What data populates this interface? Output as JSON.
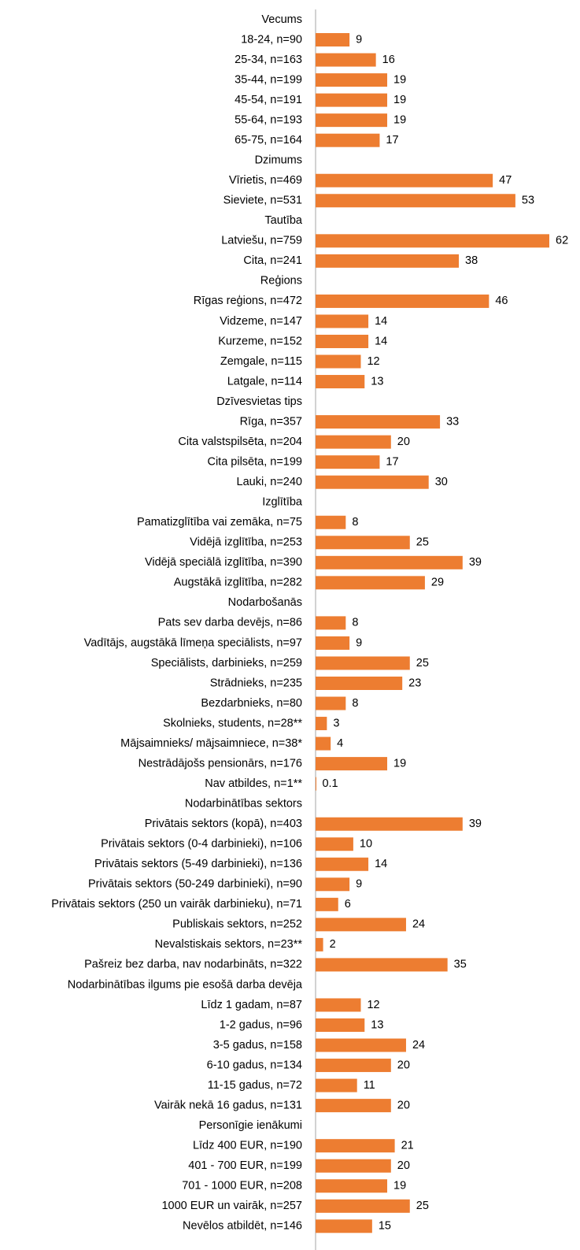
{
  "chart_data": {
    "type": "barh",
    "categories": [
      "Vecums",
      "18-24, n=90",
      "25-34, n=163",
      "35-44, n=199",
      "45-54, n=191",
      "55-64, n=193",
      "65-75, n=164",
      "Dzimums",
      "Vīrietis, n=469",
      "Sieviete, n=531",
      "Tautība",
      "Latviešu, n=759",
      "Cita, n=241",
      "Reģions",
      "Rīgas reģions, n=472",
      "Vidzeme, n=147",
      "Kurzeme, n=152",
      "Zemgale, n=115",
      "Latgale, n=114",
      "Dzīvesvietas tips",
      "Rīga, n=357",
      "Cita valstspilsēta, n=204",
      "Cita pilsēta, n=199",
      "Lauki, n=240",
      "Izglītība",
      "Pamatizglītība vai zemāka, n=75",
      "Vidējā izglītība, n=253",
      "Vidējā speciālā izglītība, n=390",
      "Augstākā izglītība, n=282",
      "Nodarbošanās",
      "Pats sev darba devējs, n=86",
      "Vadītājs, augstākā līmeņa speciālists, n=97",
      "Speciālists, darbinieks, n=259",
      "Strādnieks, n=235",
      "Bezdarbnieks, n=80",
      "Skolnieks, students, n=28**",
      "Mājsaimnieks/ mājsaimniece, n=38*",
      "Nestrādājošs pensionārs, n=176",
      "Nav atbildes, n=1**",
      "Nodarbinātības sektors",
      "Privātais sektors (kopā), n=403",
      "Privātais sektors (0-4 darbinieki), n=106",
      "Privātais sektors (5-49 darbinieki), n=136",
      "Privātais sektors (50-249 darbinieki), n=90",
      "Privātais sektors (250 un vairāk darbinieku), n=71",
      "Publiskais sektors, n=252",
      "Nevalstiskais sektors, n=23**",
      "Pašreiz bez darba, nav nodarbināts, n=322",
      "Nodarbinātības ilgums pie esošā darba devēja",
      "Līdz 1 gadam, n=87",
      "1-2 gadus, n=96",
      "3-5 gadus, n=158",
      "6-10 gadus, n=134",
      "11-15 gadus, n=72",
      "Vairāk nekā 16 gadus, n=131",
      "Personīgie ienākumi",
      "Līdz 400 EUR, n=190",
      "401 - 700 EUR, n=199",
      "701 - 1000 EUR, n=208",
      "1000 EUR un vairāk, n=257",
      "Nevēlos atbildēt, n=146"
    ],
    "values": [
      null,
      9,
      16,
      19,
      19,
      19,
      17,
      null,
      47,
      53,
      null,
      62,
      38,
      null,
      46,
      14,
      14,
      12,
      13,
      null,
      33,
      20,
      17,
      30,
      null,
      8,
      25,
      39,
      29,
      null,
      8,
      9,
      25,
      23,
      8,
      3,
      4,
      19,
      0.1,
      null,
      39,
      10,
      14,
      9,
      6,
      24,
      2,
      35,
      null,
      12,
      13,
      24,
      20,
      11,
      20,
      null,
      21,
      20,
      19,
      25,
      15
    ],
    "color": "#ed7d31",
    "xlim": [
      0,
      62
    ]
  }
}
